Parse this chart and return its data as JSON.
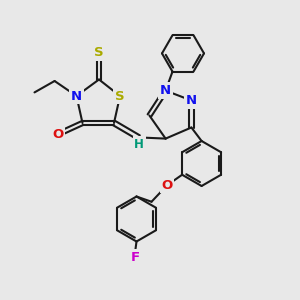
{
  "bg": "#e8e8e8",
  "bc": "#1a1a1a",
  "lw": 1.5,
  "colors": {
    "N": "#1111ee",
    "O": "#dd1111",
    "S": "#aaaa00",
    "F": "#cc00cc",
    "H": "#009977",
    "C": "#1a1a1a"
  },
  "fs": 9.5
}
